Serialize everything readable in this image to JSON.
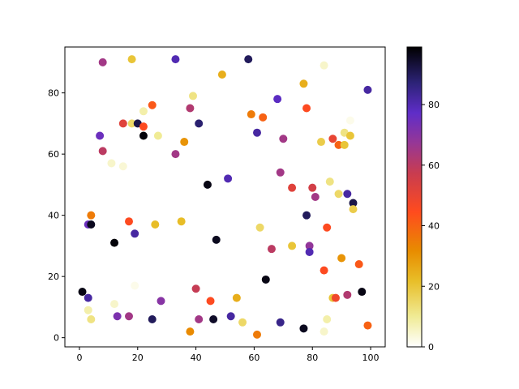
{
  "chart_data": {
    "type": "scatter",
    "title": "",
    "xlabel": "",
    "ylabel": "",
    "xlim": [
      -5,
      105
    ],
    "ylim": [
      -3,
      95
    ],
    "x_ticks": [
      0,
      20,
      40,
      60,
      80,
      100
    ],
    "y_ticks": [
      0,
      20,
      40,
      60,
      80
    ],
    "grid": false,
    "colormap": "CMRmap_r",
    "colorbar": {
      "ticks": [
        0,
        20,
        40,
        60,
        80
      ],
      "range": [
        0,
        99
      ]
    },
    "points": [
      {
        "x": 8,
        "y": 90,
        "c": 65
      },
      {
        "x": 18,
        "y": 91,
        "c": 20
      },
      {
        "x": 33,
        "y": 91,
        "c": 80
      },
      {
        "x": 49,
        "y": 86,
        "c": 25
      },
      {
        "x": 58,
        "y": 91,
        "c": 90
      },
      {
        "x": 84,
        "y": 89,
        "c": 5
      },
      {
        "x": 99,
        "y": 81,
        "c": 82
      },
      {
        "x": 25,
        "y": 76,
        "c": 42
      },
      {
        "x": 22,
        "y": 74,
        "c": 8
      },
      {
        "x": 39,
        "y": 79,
        "c": 12
      },
      {
        "x": 38,
        "y": 75,
        "c": 62
      },
      {
        "x": 41,
        "y": 70,
        "c": 88
      },
      {
        "x": 59,
        "y": 73,
        "c": 35
      },
      {
        "x": 63,
        "y": 72,
        "c": 40
      },
      {
        "x": 68,
        "y": 78,
        "c": 78
      },
      {
        "x": 77,
        "y": 83,
        "c": 25
      },
      {
        "x": 78,
        "y": 75,
        "c": 45
      },
      {
        "x": 15,
        "y": 70,
        "c": 52
      },
      {
        "x": 18,
        "y": 70,
        "c": 15
      },
      {
        "x": 20,
        "y": 70,
        "c": 92
      },
      {
        "x": 22,
        "y": 69,
        "c": 45
      },
      {
        "x": 7,
        "y": 66,
        "c": 75
      },
      {
        "x": 22,
        "y": 66,
        "c": 98
      },
      {
        "x": 27,
        "y": 66,
        "c": 10
      },
      {
        "x": 36,
        "y": 64,
        "c": 30
      },
      {
        "x": 8,
        "y": 61,
        "c": 60
      },
      {
        "x": 33,
        "y": 60,
        "c": 65
      },
      {
        "x": 61,
        "y": 67,
        "c": 82
      },
      {
        "x": 70,
        "y": 65,
        "c": 65
      },
      {
        "x": 83,
        "y": 64,
        "c": 18
      },
      {
        "x": 87,
        "y": 65,
        "c": 50
      },
      {
        "x": 89,
        "y": 63,
        "c": 40
      },
      {
        "x": 91,
        "y": 63,
        "c": 20
      },
      {
        "x": 91,
        "y": 67,
        "c": 12
      },
      {
        "x": 93,
        "y": 66,
        "c": 20
      },
      {
        "x": 93,
        "y": 71,
        "c": 2
      },
      {
        "x": 11,
        "y": 57,
        "c": 5
      },
      {
        "x": 15,
        "y": 56,
        "c": 4
      },
      {
        "x": 44,
        "y": 50,
        "c": 97
      },
      {
        "x": 51,
        "y": 52,
        "c": 80
      },
      {
        "x": 69,
        "y": 54,
        "c": 65
      },
      {
        "x": 73,
        "y": 49,
        "c": 52
      },
      {
        "x": 80,
        "y": 49,
        "c": 55
      },
      {
        "x": 81,
        "y": 46,
        "c": 65
      },
      {
        "x": 86,
        "y": 51,
        "c": 12
      },
      {
        "x": 89,
        "y": 47,
        "c": 15
      },
      {
        "x": 92,
        "y": 47,
        "c": 82
      },
      {
        "x": 94,
        "y": 44,
        "c": 92
      },
      {
        "x": 94,
        "y": 42,
        "c": 18
      },
      {
        "x": 3,
        "y": 37,
        "c": 75
      },
      {
        "x": 4,
        "y": 37,
        "c": 96
      },
      {
        "x": 4,
        "y": 40,
        "c": 35
      },
      {
        "x": 17,
        "y": 38,
        "c": 45
      },
      {
        "x": 19,
        "y": 34,
        "c": 82
      },
      {
        "x": 26,
        "y": 37,
        "c": 22
      },
      {
        "x": 35,
        "y": 38,
        "c": 22
      },
      {
        "x": 12,
        "y": 31,
        "c": 98
      },
      {
        "x": 47,
        "y": 32,
        "c": 96
      },
      {
        "x": 62,
        "y": 36,
        "c": 15
      },
      {
        "x": 66,
        "y": 29,
        "c": 60
      },
      {
        "x": 73,
        "y": 30,
        "c": 20
      },
      {
        "x": 78,
        "y": 40,
        "c": 90
      },
      {
        "x": 79,
        "y": 30,
        "c": 68
      },
      {
        "x": 79,
        "y": 28,
        "c": 80
      },
      {
        "x": 85,
        "y": 36,
        "c": 45
      },
      {
        "x": 84,
        "y": 22,
        "c": 45
      },
      {
        "x": 90,
        "y": 26,
        "c": 30
      },
      {
        "x": 96,
        "y": 24,
        "c": 42
      },
      {
        "x": 1,
        "y": 15,
        "c": 97
      },
      {
        "x": 3,
        "y": 13,
        "c": 82
      },
      {
        "x": 3,
        "y": 9,
        "c": 8
      },
      {
        "x": 4,
        "y": 6,
        "c": 12
      },
      {
        "x": 12,
        "y": 11,
        "c": 5
      },
      {
        "x": 13,
        "y": 7,
        "c": 72
      },
      {
        "x": 17,
        "y": 7,
        "c": 65
      },
      {
        "x": 19,
        "y": 17,
        "c": 2
      },
      {
        "x": 25,
        "y": 6,
        "c": 90
      },
      {
        "x": 28,
        "y": 12,
        "c": 70
      },
      {
        "x": 38,
        "y": 2,
        "c": 32
      },
      {
        "x": 40,
        "y": 16,
        "c": 58
      },
      {
        "x": 41,
        "y": 6,
        "c": 65
      },
      {
        "x": 45,
        "y": 12,
        "c": 45
      },
      {
        "x": 46,
        "y": 6,
        "c": 95
      },
      {
        "x": 52,
        "y": 7,
        "c": 82
      },
      {
        "x": 54,
        "y": 13,
        "c": 25
      },
      {
        "x": 56,
        "y": 5,
        "c": 15
      },
      {
        "x": 61,
        "y": 1,
        "c": 35
      },
      {
        "x": 64,
        "y": 19,
        "c": 97
      },
      {
        "x": 69,
        "y": 5,
        "c": 85
      },
      {
        "x": 77,
        "y": 3,
        "c": 96
      },
      {
        "x": 84,
        "y": 2,
        "c": 5
      },
      {
        "x": 85,
        "y": 6,
        "c": 8
      },
      {
        "x": 87,
        "y": 13,
        "c": 20
      },
      {
        "x": 88,
        "y": 13,
        "c": 48
      },
      {
        "x": 92,
        "y": 14,
        "c": 62
      },
      {
        "x": 97,
        "y": 15,
        "c": 97
      },
      {
        "x": 99,
        "y": 4,
        "c": 40
      }
    ]
  }
}
